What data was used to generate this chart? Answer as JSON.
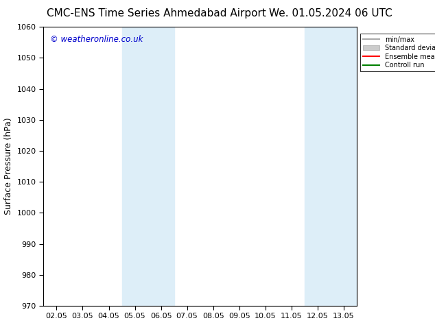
{
  "title_left": "CMC-ENS Time Series Ahmedabad Airport",
  "title_right": "We. 01.05.2024 06 UTC",
  "ylabel": "Surface Pressure (hPa)",
  "ylim": [
    970,
    1060
  ],
  "yticks": [
    970,
    980,
    990,
    1000,
    1010,
    1020,
    1030,
    1040,
    1050,
    1060
  ],
  "xtick_labels": [
    "02.05",
    "03.05",
    "04.05",
    "05.05",
    "06.05",
    "07.05",
    "08.05",
    "09.05",
    "10.05",
    "11.05",
    "12.05",
    "13.05"
  ],
  "xtick_positions": [
    0,
    1,
    2,
    3,
    4,
    5,
    6,
    7,
    8,
    9,
    10,
    11
  ],
  "xlim": [
    -0.5,
    11.5
  ],
  "shaded_bands": [
    {
      "xmin": 2.5,
      "xmax": 4.5,
      "color": "#ddeef8"
    },
    {
      "xmin": 9.5,
      "xmax": 11.5,
      "color": "#ddeef8"
    }
  ],
  "legend_entries": [
    {
      "label": "min/max",
      "color": "#aaaaaa",
      "style": "line"
    },
    {
      "label": "Standard deviation",
      "color": "#cccccc",
      "style": "band"
    },
    {
      "label": "Ensemble mean run",
      "color": "#ff0000",
      "style": "line"
    },
    {
      "label": "Controll run",
      "color": "#008000",
      "style": "line"
    }
  ],
  "watermark_text": "© weatheronline.co.uk",
  "watermark_color": "#0000cc",
  "background_color": "#ffffff",
  "title_fontsize": 11,
  "axis_fontsize": 9,
  "tick_fontsize": 8
}
